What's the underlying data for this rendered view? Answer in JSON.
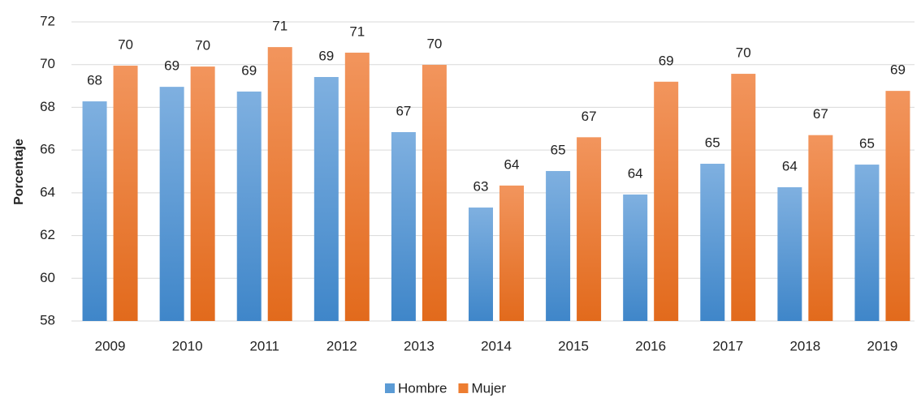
{
  "chart_data": {
    "type": "bar",
    "y_label": "Porcentaje",
    "categories": [
      "2009",
      "2010",
      "2011",
      "2012",
      "2013",
      "2014",
      "2015",
      "2016",
      "2017",
      "2018",
      "2019"
    ],
    "series": [
      {
        "name": "Hombre",
        "color": "#5b9bd5",
        "values": [
          68.28,
          68.96,
          68.74,
          69.42,
          66.84,
          63.31,
          65.02,
          63.92,
          65.36,
          64.26,
          65.32
        ],
        "value_labels": [
          "68",
          "69",
          "69",
          "69",
          "67",
          "63",
          "65",
          "64",
          "65",
          "64",
          "65"
        ]
      },
      {
        "name": "Mujer",
        "color": "#ed7d31",
        "values": [
          69.95,
          69.91,
          70.82,
          70.56,
          69.99,
          64.34,
          66.6,
          69.2,
          69.57,
          66.7,
          68.77
        ],
        "value_labels": [
          "70",
          "70",
          "71",
          "71",
          "70",
          "64",
          "67",
          "69",
          "70",
          "67",
          "69"
        ]
      }
    ],
    "ylim": [
      58,
      72
    ],
    "yticks": [
      58,
      60,
      62,
      64,
      66,
      68,
      70,
      72
    ],
    "grid": true,
    "legend": "bottom"
  }
}
